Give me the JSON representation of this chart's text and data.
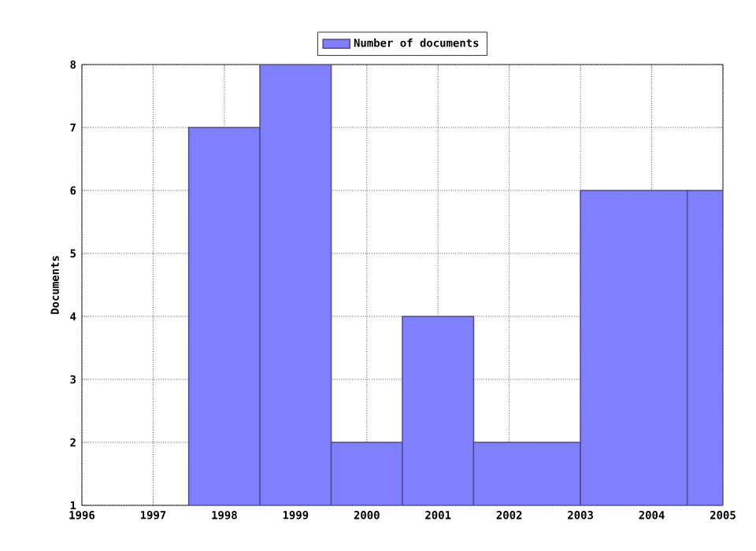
{
  "chart_data": {
    "type": "histogram",
    "ylabel": "Documents",
    "bins": [
      1997.5,
      1998.5,
      1999.5,
      2000.5,
      2001.5,
      2003,
      2004.5,
      2005
    ],
    "series": [
      {
        "name": "Number of documents",
        "color": "#8080ff",
        "values": [
          7,
          8,
          2,
          4,
          2,
          6,
          6
        ]
      }
    ],
    "xlim": [
      1996,
      2005
    ],
    "xticks": [
      1996,
      1997,
      1998,
      1999,
      2000,
      2001,
      2002,
      2003,
      2004,
      2005
    ],
    "ylim": [
      1,
      8
    ],
    "yticks": [
      1,
      2,
      3,
      4,
      5,
      6,
      7,
      8
    ],
    "grid": true,
    "legend": "top"
  }
}
